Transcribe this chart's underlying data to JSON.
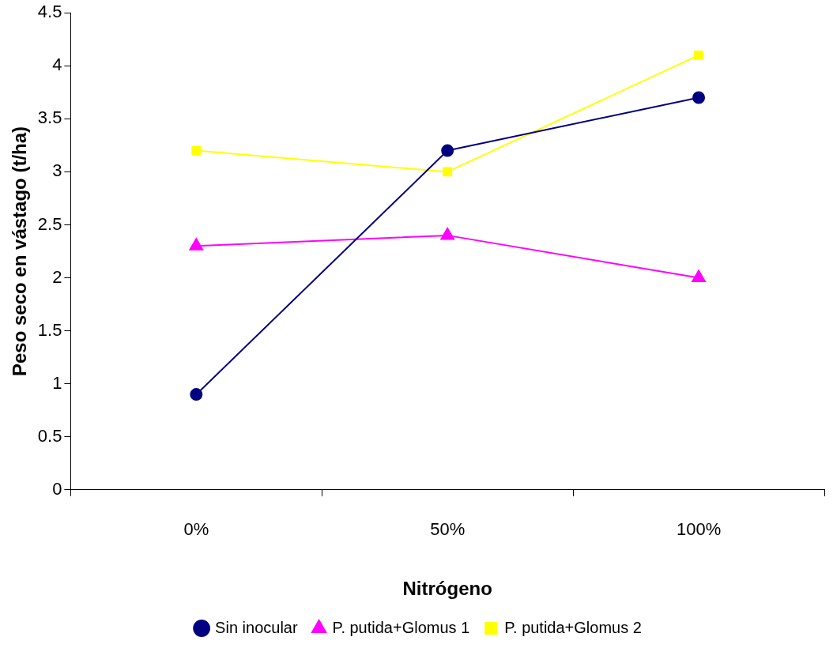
{
  "chart_data": {
    "type": "line",
    "xlabel": "Nitrógeno",
    "ylabel": "Peso seco en vástago (t/ha)",
    "categories": [
      "0%",
      "50%",
      "100%"
    ],
    "series": [
      {
        "name": "Sin inocular",
        "color": "#000080",
        "values": [
          0.9,
          3.2,
          3.7
        ],
        "marker": "circle"
      },
      {
        "name": "P. putida+Glomus 1",
        "color": "#ff00ff",
        "values": [
          2.3,
          2.4,
          2.0
        ],
        "marker": "triangle"
      },
      {
        "name": "P. putida+Glomus 2",
        "color": "#ffff00",
        "values": [
          3.2,
          3.0,
          4.1
        ],
        "marker": "square"
      }
    ],
    "ylim": [
      0,
      4.5
    ],
    "yticks": [
      0,
      0.5,
      1,
      1.5,
      2,
      2.5,
      3,
      3.5,
      4,
      4.5
    ],
    "grid": false,
    "legend": "bottom",
    "line_style": "solid"
  }
}
